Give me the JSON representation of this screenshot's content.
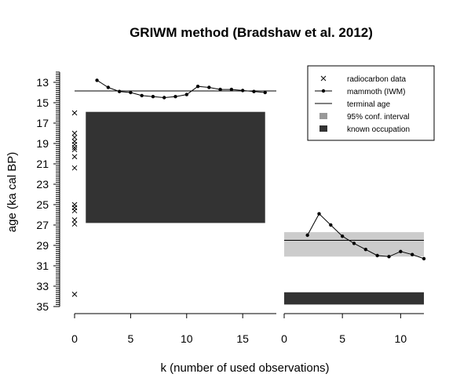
{
  "chart_data": {
    "type": "line",
    "title": "GRIWM method (Bradshaw et al. 2012)",
    "xlabel": "k (number of used observations)",
    "ylabel": "age (ka cal BP)",
    "y_axis": {
      "range": [
        35.0,
        12.0
      ],
      "reversed": true,
      "labeled_ticks": [
        13,
        15,
        17,
        19,
        21,
        23,
        25,
        27,
        29,
        31,
        33,
        35
      ],
      "minor_step": 0.2
    },
    "panels": [
      {
        "name": "left",
        "x_range": [
          0,
          18
        ],
        "x_ticks": [
          0,
          5,
          10,
          15
        ],
        "terminal_age": 13.85,
        "known_occupation": [
          {
            "x0": 1,
            "x1": 17,
            "y_top": 15.9,
            "y_bottom": 26.8
          }
        ],
        "radiocarbon_data": [
          16.0,
          18.0,
          18.4,
          18.8,
          19.1,
          19.4,
          19.6,
          20.3,
          21.4,
          25.0,
          25.3,
          25.6,
          26.5,
          26.9,
          33.8
        ],
        "mammoth_iwm": {
          "x": [
            2,
            3,
            4,
            5,
            6,
            7,
            8,
            9,
            10,
            11,
            12,
            13,
            14,
            15,
            16,
            17
          ],
          "y": [
            12.8,
            13.5,
            13.9,
            14.0,
            14.3,
            14.4,
            14.5,
            14.4,
            14.2,
            13.4,
            13.5,
            13.7,
            13.7,
            13.8,
            13.9,
            14.0
          ]
        }
      },
      {
        "name": "right",
        "x_range": [
          0,
          12
        ],
        "x_ticks": [
          0,
          5,
          10
        ],
        "terminal_age": 28.5,
        "conf_interval": [
          27.7,
          30.1
        ],
        "known_occupation": [
          {
            "x0": 0,
            "x1": 12,
            "y_top": 33.6,
            "y_bottom": 34.8
          }
        ],
        "mammoth_iwm": {
          "x": [
            2,
            3,
            4,
            5,
            6,
            7,
            8,
            9,
            10,
            11,
            12
          ],
          "y": [
            28.0,
            25.9,
            27.0,
            28.1,
            28.8,
            29.4,
            30.0,
            30.1,
            29.6,
            29.9,
            30.3
          ]
        }
      }
    ],
    "legend": {
      "placement": "top-right",
      "entries": [
        "radiocarbon data",
        "mammoth (IWM)",
        "terminal age",
        "95% conf. interval",
        "known occupation"
      ]
    },
    "colors": {
      "known_occupation": "#333333",
      "conf_interval": "#cccccc",
      "legend_conf_interval": "#999999",
      "series": "#000000"
    }
  }
}
